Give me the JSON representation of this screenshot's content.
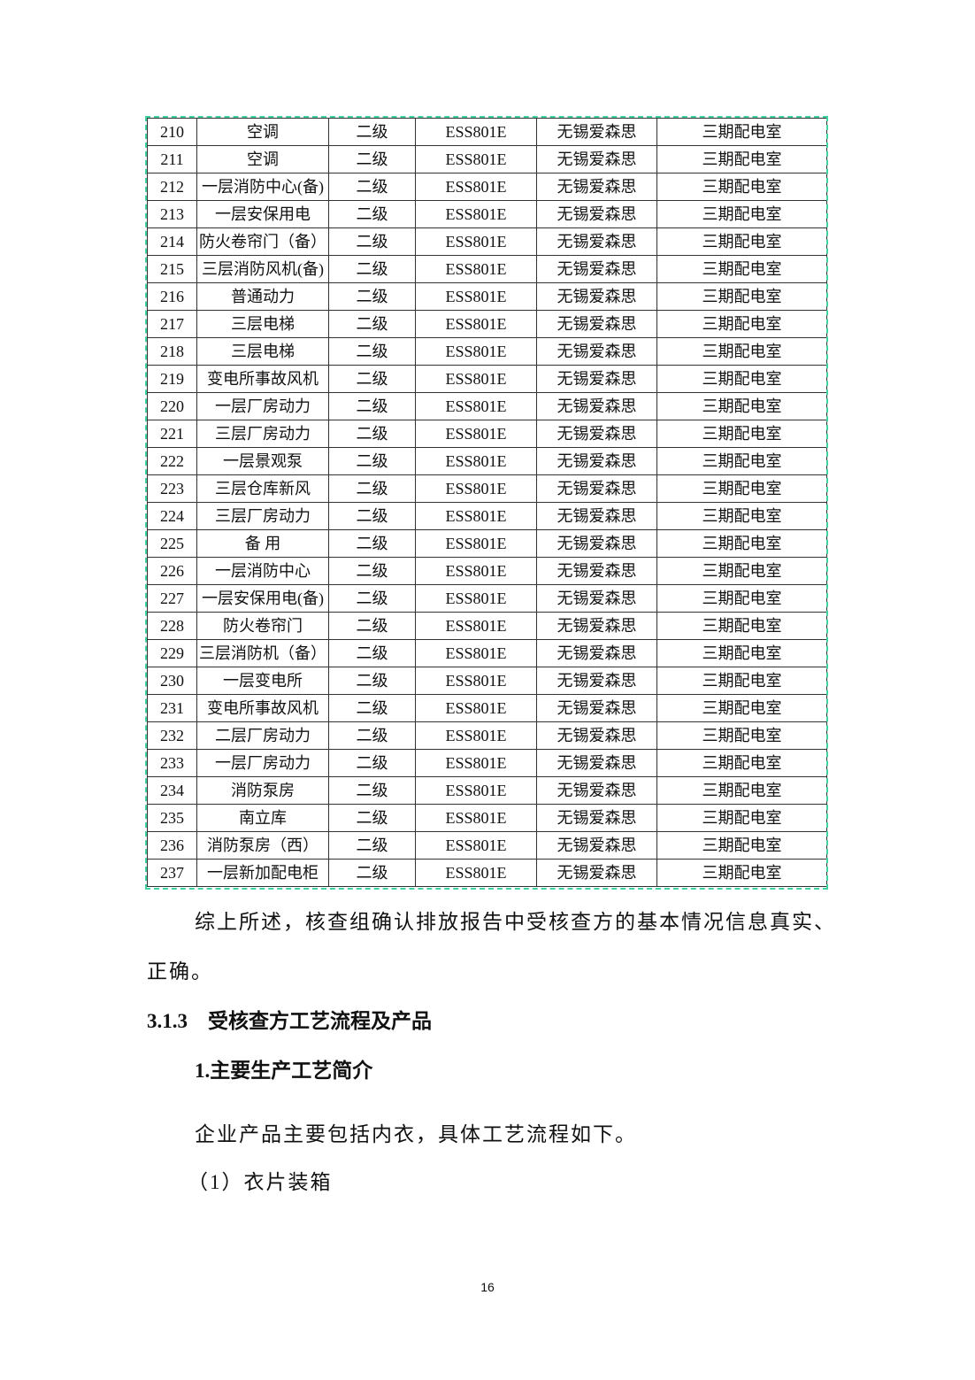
{
  "table": {
    "rows": [
      [
        "210",
        "空调",
        "二级",
        "ESS801E",
        "无锡爱森思",
        "三期配电室"
      ],
      [
        "211",
        "空调",
        "二级",
        "ESS801E",
        "无锡爱森思",
        "三期配电室"
      ],
      [
        "212",
        "一层消防中心(备)",
        "二级",
        "ESS801E",
        "无锡爱森思",
        "三期配电室"
      ],
      [
        "213",
        "一层安保用电",
        "二级",
        "ESS801E",
        "无锡爱森思",
        "三期配电室"
      ],
      [
        "214",
        "防火卷帘门（备）",
        "二级",
        "ESS801E",
        "无锡爱森思",
        "三期配电室"
      ],
      [
        "215",
        "三层消防风机(备)",
        "二级",
        "ESS801E",
        "无锡爱森思",
        "三期配电室"
      ],
      [
        "216",
        "普通动力",
        "二级",
        "ESS801E",
        "无锡爱森思",
        "三期配电室"
      ],
      [
        "217",
        "三层电梯",
        "二级",
        "ESS801E",
        "无锡爱森思",
        "三期配电室"
      ],
      [
        "218",
        "三层电梯",
        "二级",
        "ESS801E",
        "无锡爱森思",
        "三期配电室"
      ],
      [
        "219",
        "变电所事故风机",
        "二级",
        "ESS801E",
        "无锡爱森思",
        "三期配电室"
      ],
      [
        "220",
        "一层厂房动力",
        "二级",
        "ESS801E",
        "无锡爱森思",
        "三期配电室"
      ],
      [
        "221",
        "三层厂房动力",
        "二级",
        "ESS801E",
        "无锡爱森思",
        "三期配电室"
      ],
      [
        "222",
        "一层景观泵",
        "二级",
        "ESS801E",
        "无锡爱森思",
        "三期配电室"
      ],
      [
        "223",
        "三层仓库新风",
        "二级",
        "ESS801E",
        "无锡爱森思",
        "三期配电室"
      ],
      [
        "224",
        "三层厂房动力",
        "二级",
        "ESS801E",
        "无锡爱森思",
        "三期配电室"
      ],
      [
        "225",
        "备 用",
        "二级",
        "ESS801E",
        "无锡爱森思",
        "三期配电室"
      ],
      [
        "226",
        "一层消防中心",
        "二级",
        "ESS801E",
        "无锡爱森思",
        "三期配电室"
      ],
      [
        "227",
        "一层安保用电(备)",
        "二级",
        "ESS801E",
        "无锡爱森思",
        "三期配电室"
      ],
      [
        "228",
        "防火卷帘门",
        "二级",
        "ESS801E",
        "无锡爱森思",
        "三期配电室"
      ],
      [
        "229",
        "三层消防机（备）",
        "二级",
        "ESS801E",
        "无锡爱森思",
        "三期配电室"
      ],
      [
        "230",
        "一层变电所",
        "二级",
        "ESS801E",
        "无锡爱森思",
        "三期配电室"
      ],
      [
        "231",
        "变电所事故风机",
        "二级",
        "ESS801E",
        "无锡爱森思",
        "三期配电室"
      ],
      [
        "232",
        "二层厂房动力",
        "二级",
        "ESS801E",
        "无锡爱森思",
        "三期配电室"
      ],
      [
        "233",
        "一层厂房动力",
        "二级",
        "ESS801E",
        "无锡爱森思",
        "三期配电室"
      ],
      [
        "234",
        "消防泵房",
        "二级",
        "ESS801E",
        "无锡爱森思",
        "三期配电室"
      ],
      [
        "235",
        "南立库",
        "二级",
        "ESS801E",
        "无锡爱森思",
        "三期配电室"
      ],
      [
        "236",
        "消防泵房（西）",
        "二级",
        "ESS801E",
        "无锡爱森思",
        "三期配电室"
      ],
      [
        "237",
        "一层新加配电柜",
        "二级",
        "ESS801E",
        "无锡爱森思",
        "三期配电室"
      ]
    ]
  },
  "body": {
    "para1_line1": "综上所述，核查组确认排放报告中受核查方的基本情况信息真实、",
    "para1_line2": "正确。",
    "section_heading": "3.1.3　受核查方工艺流程及产品",
    "sub_heading": "1.主要生产工艺简介",
    "para2": "企业产品主要包括内衣，具体工艺流程如下。",
    "item1": "（1）衣片装箱"
  },
  "page_number": "16",
  "colors": {
    "table_outline": "#3fd3a0"
  }
}
